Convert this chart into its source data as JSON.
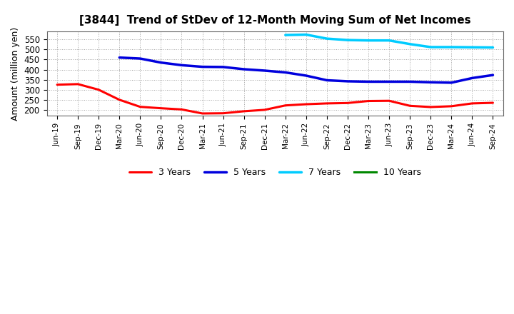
{
  "title": "[3844]  Trend of StDev of 12-Month Moving Sum of Net Incomes",
  "ylabel": "Amount (million yen)",
  "background_color": "#ffffff",
  "plot_bg_color": "#ffffff",
  "grid_color": "#999999",
  "x_labels": [
    "Jun-19",
    "Sep-19",
    "Dec-19",
    "Mar-20",
    "Jun-20",
    "Sep-20",
    "Dec-20",
    "Mar-21",
    "Jun-21",
    "Sep-21",
    "Dec-21",
    "Mar-22",
    "Jun-22",
    "Sep-22",
    "Dec-22",
    "Mar-23",
    "Jun-23",
    "Sep-23",
    "Dec-23",
    "Mar-24",
    "Jun-24",
    "Sep-24"
  ],
  "series_order": [
    "3 Years",
    "5 Years",
    "7 Years",
    "10 Years"
  ],
  "series": {
    "3 Years": {
      "color": "#ff0000",
      "linewidth": 2.2,
      "values": [
        325,
        328,
        300,
        250,
        215,
        208,
        202,
        182,
        183,
        193,
        200,
        222,
        228,
        232,
        234,
        244,
        245,
        220,
        214,
        218,
        232,
        235
      ]
    },
    "5 Years": {
      "color": "#0000dd",
      "linewidth": 2.5,
      "values": [
        null,
        null,
        null,
        460,
        455,
        435,
        422,
        414,
        413,
        402,
        395,
        386,
        370,
        347,
        342,
        340,
        340,
        340,
        337,
        335,
        358,
        373
      ]
    },
    "7 Years": {
      "color": "#00ccff",
      "linewidth": 2.5,
      "values": [
        null,
        null,
        null,
        null,
        null,
        null,
        null,
        null,
        null,
        null,
        null,
        572,
        574,
        554,
        547,
        545,
        545,
        527,
        512,
        512,
        511,
        510
      ]
    },
    "10 Years": {
      "color": "#008800",
      "linewidth": 2.2,
      "values": [
        null,
        null,
        null,
        null,
        null,
        null,
        null,
        null,
        null,
        null,
        null,
        null,
        null,
        null,
        null,
        null,
        null,
        null,
        null,
        null,
        null,
        null
      ]
    }
  },
  "ylim": [
    170,
    590
  ],
  "yticks": [
    200,
    250,
    300,
    350,
    400,
    450,
    500,
    550
  ],
  "legend_ncol": 4
}
